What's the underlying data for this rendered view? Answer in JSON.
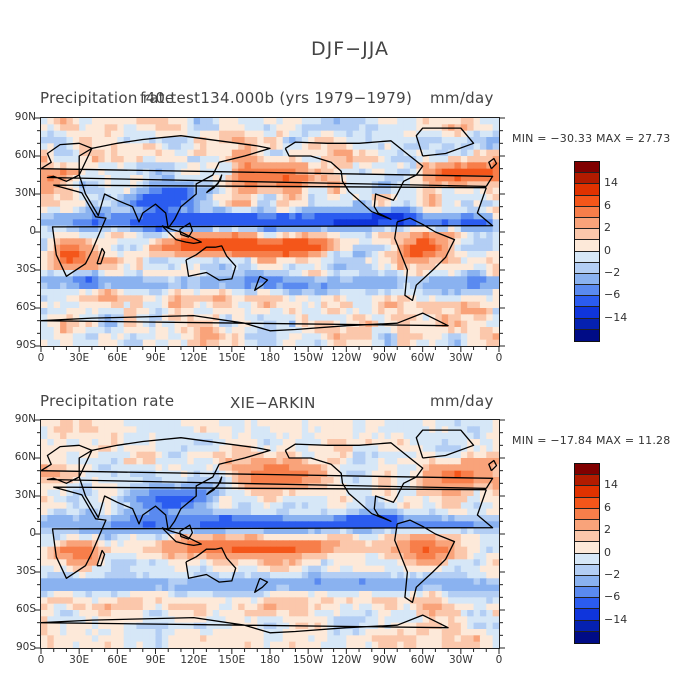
{
  "figure": {
    "title": "DJF−JJA",
    "panels": [
      {
        "left_title": "Precipitation rate",
        "right_title": "mm/day",
        "overlap_text": "f40.test134.000b (yrs 1979−1979)",
        "minmax_text": "MIN = −30.33  MAX =   27.73"
      },
      {
        "left_title": "Precipitation rate",
        "center_title": "XIE−ARKIN",
        "right_title": "mm/day",
        "minmax_text": "MIN = −17.84  MAX =   11.28"
      }
    ]
  },
  "colorbar": {
    "colors": [
      "#800000",
      "#b21b00",
      "#e03200",
      "#f4561a",
      "#f77e4a",
      "#f9a37a",
      "#fbc7ab",
      "#fde9d9",
      "#d6e7f7",
      "#b3cef4",
      "#8ab2f0",
      "#5a8af0",
      "#2b5cf0",
      "#0f35dc",
      "#0521b0",
      "#000c86"
    ],
    "labels": [
      "14",
      "6",
      "2",
      "0",
      "−2",
      "−6",
      "−14"
    ],
    "label_positions": [
      2,
      4,
      6,
      8,
      10,
      12,
      14
    ]
  },
  "chart_data": [
    {
      "type": "heatmap",
      "title": "Precipitation rate",
      "subtitle": "f40.test134.000b (yrs 1979−1979)",
      "units": "mm/day",
      "x_ticks": [
        "0",
        "30E",
        "60E",
        "90E",
        "120E",
        "150E",
        "180",
        "150W",
        "120W",
        "90W",
        "60W",
        "30W",
        "0"
      ],
      "y_ticks": [
        "90N",
        "60N",
        "30N",
        "0",
        "30S",
        "60S",
        "90S"
      ],
      "min": -30.33,
      "max": 27.73,
      "contour_levels": [
        -14,
        -6,
        -2,
        0,
        2,
        6,
        14
      ]
    },
    {
      "type": "heatmap",
      "title": "Precipitation rate",
      "subtitle": "XIE−ARKIN",
      "units": "mm/day",
      "x_ticks": [
        "0",
        "30E",
        "60E",
        "90E",
        "120E",
        "150E",
        "180",
        "150W",
        "120W",
        "90W",
        "60W",
        "30W",
        "0"
      ],
      "y_ticks": [
        "90N",
        "60N",
        "30N",
        "0",
        "30S",
        "60S",
        "90S"
      ],
      "min": -17.84,
      "max": 11.28,
      "contour_levels": [
        -14,
        -6,
        -2,
        0,
        2,
        6,
        14
      ]
    }
  ]
}
